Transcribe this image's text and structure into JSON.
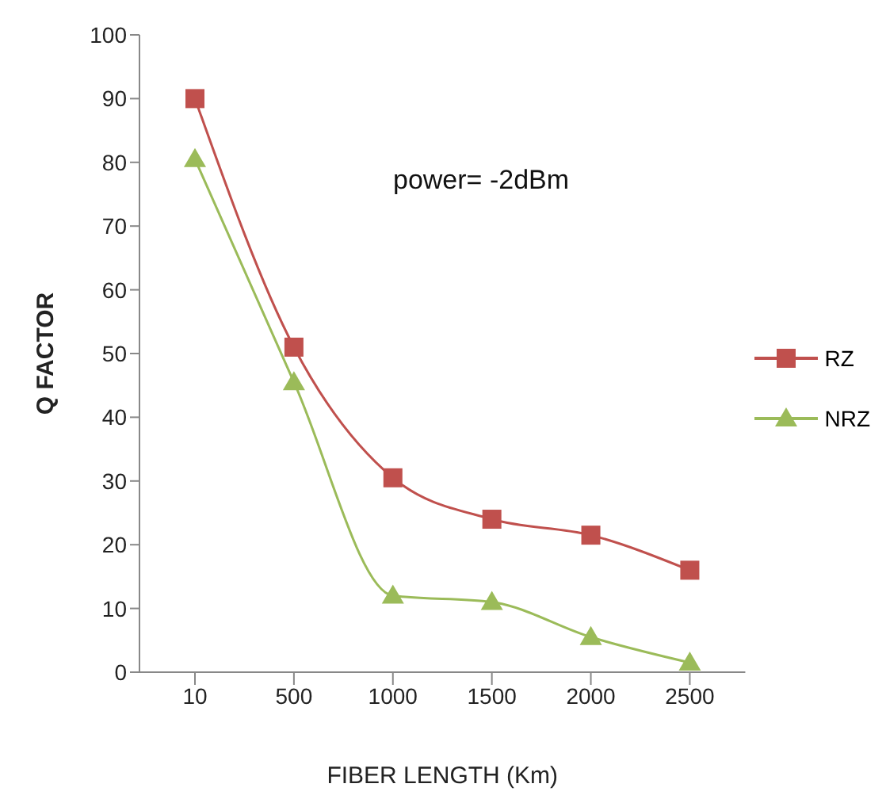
{
  "chart_data": {
    "type": "line",
    "xlabel": "FIBER LENGTH (Km)",
    "ylabel": "Q FACTOR",
    "annotations": [
      "power= -2dBm"
    ],
    "categories": [
      "10",
      "500",
      "1000",
      "1500",
      "2000",
      "2500"
    ],
    "series": [
      {
        "name": "RZ",
        "color": "#c0504d",
        "marker": "square",
        "values": [
          90,
          51,
          30.5,
          24,
          21.5,
          16
        ]
      },
      {
        "name": "NRZ",
        "color": "#9bbb59",
        "marker": "triangle",
        "values": [
          80.5,
          45.5,
          12,
          11,
          5.5,
          1.5
        ]
      }
    ],
    "ylim": [
      0,
      100
    ],
    "yticks": [
      0,
      10,
      20,
      30,
      40,
      50,
      60,
      70,
      80,
      90,
      100
    ],
    "grid": false,
    "legend": "right"
  }
}
